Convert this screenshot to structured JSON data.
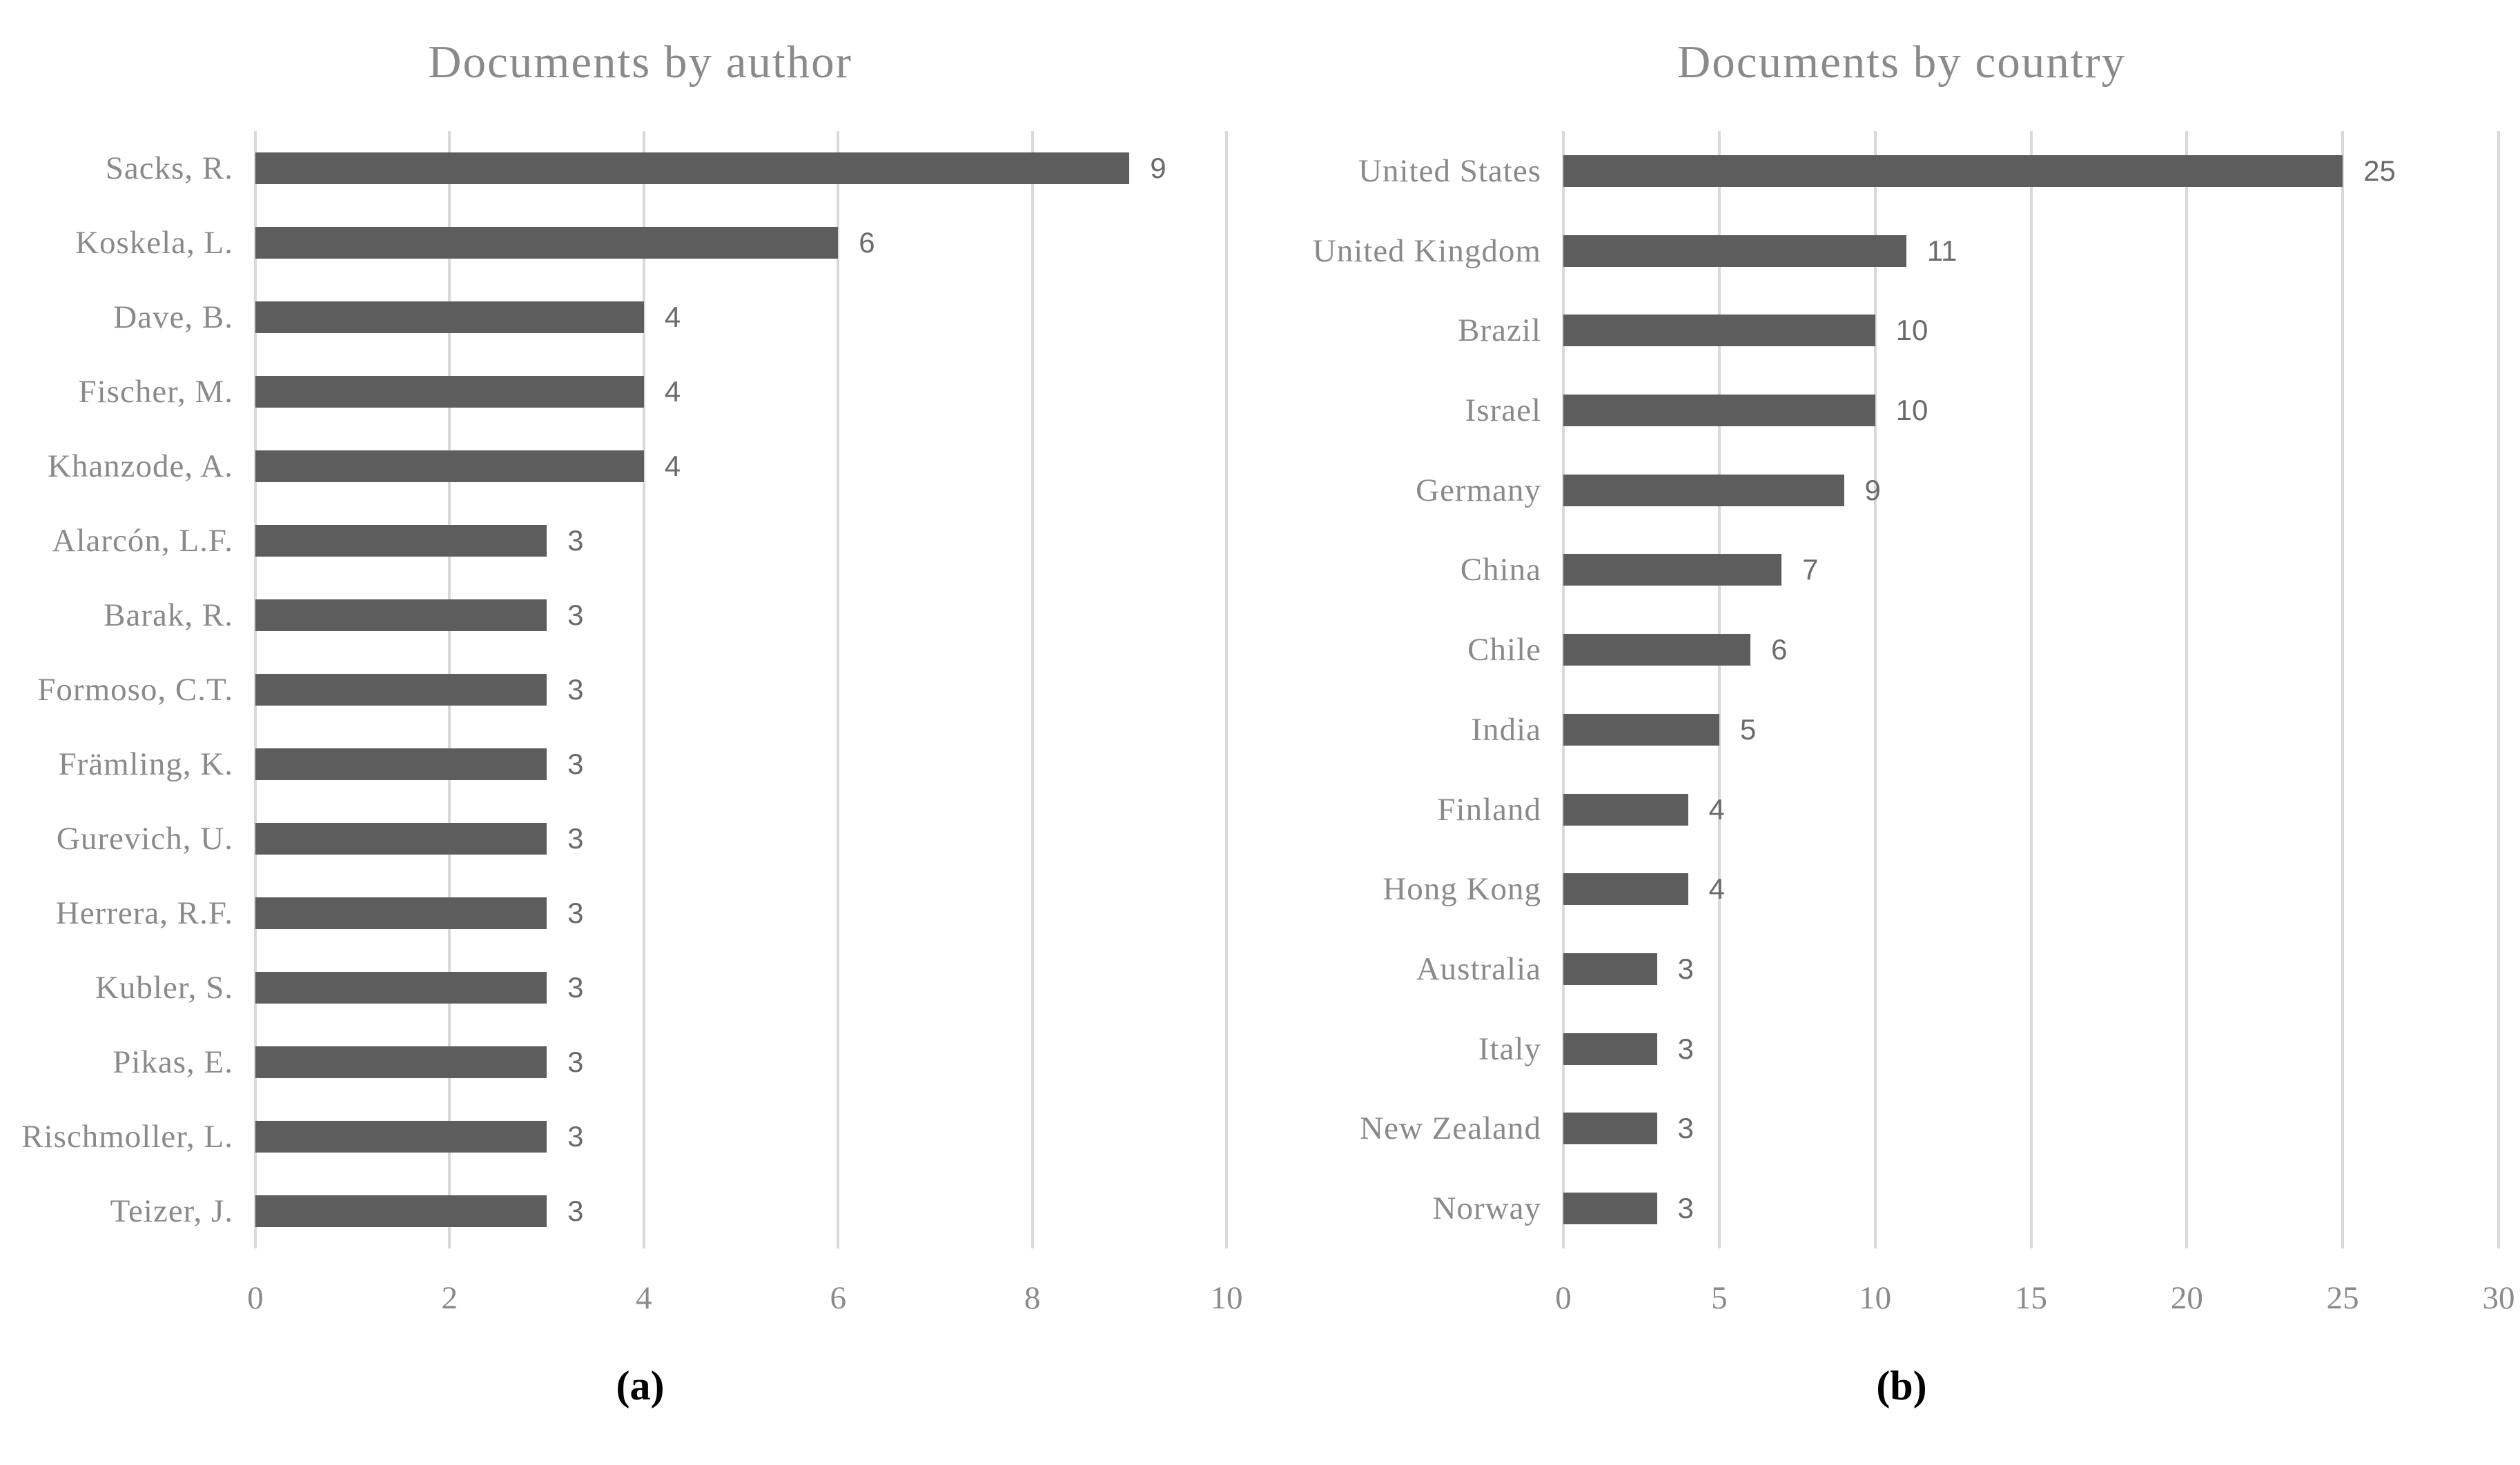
{
  "colors": {
    "bar": "#5d5d5d",
    "gridline": "#d9d9d9",
    "axis_text": "#8a8a8a",
    "title_text": "#8a8a8a",
    "value_text": "#6b6b6b",
    "panel_label_text": "#000000",
    "background": "#ffffff"
  },
  "chart_data": [
    {
      "type": "bar",
      "orientation": "horizontal",
      "title": "Documents by author",
      "panel_label": "(a)",
      "categories": [
        "Sacks, R.",
        "Koskela, L.",
        "Dave, B.",
        "Fischer, M.",
        "Khanzode, A.",
        "Alarcón, L.F.",
        "Barak, R.",
        "Formoso, C.T.",
        "Främling, K.",
        "Gurevich, U.",
        "Herrera, R.F.",
        "Kubler, S.",
        "Pikas, E.",
        "Rischmoller, L.",
        "Teizer, J."
      ],
      "values": [
        9,
        6,
        4,
        4,
        4,
        3,
        3,
        3,
        3,
        3,
        3,
        3,
        3,
        3,
        3
      ],
      "xlabel": "",
      "ylabel": "",
      "xlim": [
        0,
        10
      ],
      "xticks": [
        0,
        2,
        4,
        6,
        8,
        10
      ],
      "grid": true,
      "data_labels": true,
      "legend": "none"
    },
    {
      "type": "bar",
      "orientation": "horizontal",
      "title": "Documents by country",
      "panel_label": "(b)",
      "categories": [
        "United States",
        "United Kingdom",
        "Brazil",
        "Israel",
        "Germany",
        "China",
        "Chile",
        "India",
        "Finland",
        "Hong Kong",
        "Australia",
        "Italy",
        "New Zealand",
        "Norway"
      ],
      "values": [
        25,
        11,
        10,
        10,
        9,
        7,
        6,
        5,
        4,
        4,
        3,
        3,
        3,
        3
      ],
      "xlabel": "",
      "ylabel": "",
      "xlim": [
        0,
        30
      ],
      "xticks": [
        0,
        5,
        10,
        15,
        20,
        25,
        30
      ],
      "grid": true,
      "data_labels": true,
      "legend": "none"
    }
  ]
}
